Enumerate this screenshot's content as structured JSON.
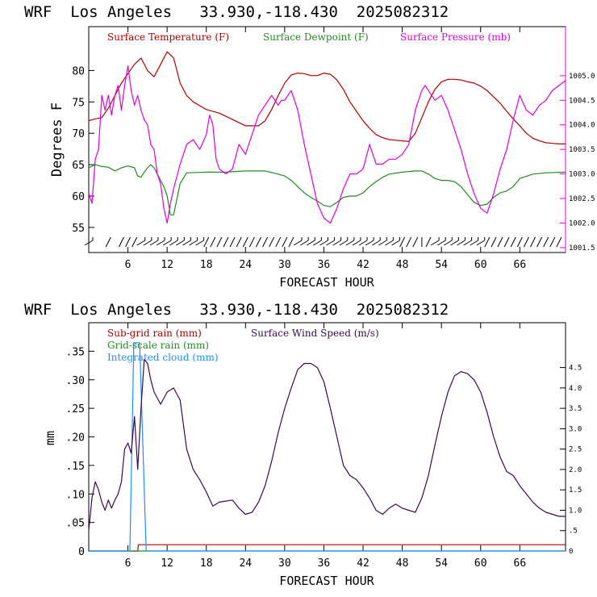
{
  "chart_data": [
    {
      "type": "line",
      "title": "WRF  Los Angeles   33.930,-118.430  2025082312",
      "xlabel": "FORECAST HOUR",
      "ylabel": "Degrees F",
      "xlim": [
        0,
        73
      ],
      "ylim": [
        51,
        87
      ],
      "y2lim": [
        1001.4,
        1006.0
      ],
      "x_ticks": [
        6,
        12,
        18,
        24,
        30,
        36,
        42,
        48,
        54,
        60,
        66
      ],
      "x_tick_labels": [
        "6",
        "12",
        "18",
        "24",
        "30",
        "36",
        "42",
        "48",
        "54",
        "60",
        "66"
      ],
      "y_ticks": [
        55,
        60,
        65,
        70,
        75,
        80
      ],
      "y_tick_labels": [
        "55",
        "60",
        "65",
        "70",
        "75",
        "80"
      ],
      "y2_ticks": [
        1001.5,
        1002.0,
        1002.5,
        1003.0,
        1003.5,
        1004.0,
        1004.5,
        1005.0
      ],
      "y2_tick_labels": [
        "1001.5",
        "1002.0",
        "1002.5",
        "1003.0",
        "1003.5",
        "1004.0",
        "1004.5",
        "1005.0"
      ],
      "grid": false,
      "legend_position": "top",
      "series": [
        {
          "name": "Surface Temperature (F)",
          "color": "#b00000",
          "axis": "left",
          "x": [
            0,
            1,
            2,
            3,
            4,
            5,
            6,
            7,
            8,
            9,
            10,
            11,
            12,
            13,
            14,
            15,
            16,
            18,
            20,
            22,
            24,
            26,
            27,
            28,
            29,
            30,
            31,
            32,
            33,
            34,
            35,
            36,
            37,
            38,
            39,
            40,
            41,
            42,
            43,
            44,
            45,
            46,
            47,
            48,
            49,
            50,
            51,
            52,
            53,
            54,
            55,
            56,
            57,
            58,
            59,
            60,
            61,
            62,
            63,
            64,
            65,
            66,
            67,
            68,
            69,
            70,
            71,
            72,
            73
          ],
          "values": [
            72.0,
            72.3,
            72.5,
            74.0,
            76.0,
            78.0,
            79.5,
            81.0,
            82.0,
            80.0,
            79.0,
            81.0,
            83.0,
            82.0,
            78.0,
            76.0,
            75.0,
            73.8,
            73.2,
            72.2,
            71.2,
            71.2,
            72.0,
            73.8,
            76.0,
            78.0,
            79.3,
            79.6,
            79.5,
            79.2,
            79.2,
            79.6,
            79.4,
            78.5,
            77.0,
            75.0,
            73.5,
            72.0,
            70.8,
            69.8,
            69.3,
            69.0,
            68.9,
            68.8,
            68.7,
            70.0,
            72.5,
            75.0,
            77.0,
            78.2,
            78.6,
            78.6,
            78.5,
            78.2,
            78.0,
            77.5,
            76.8,
            75.8,
            74.8,
            73.5,
            72.3,
            71.2,
            70.0,
            69.2,
            68.8,
            68.5,
            68.4,
            68.3,
            68.3
          ]
        },
        {
          "name": "Surface Dewpoint (F)",
          "color": "#228b22",
          "axis": "left",
          "x": [
            0,
            1,
            2,
            3,
            4,
            5,
            6,
            7,
            7.5,
            8,
            8.5,
            9,
            9.5,
            10,
            10.5,
            11,
            11.5,
            12,
            12.5,
            13,
            14,
            15,
            18,
            21,
            24,
            27,
            29,
            30,
            31,
            32,
            33,
            34,
            35,
            36,
            37,
            38,
            39,
            40,
            41,
            42,
            43,
            44,
            45,
            46,
            48,
            50,
            51,
            52,
            53,
            54,
            55,
            56,
            57,
            58,
            59,
            60,
            61,
            62,
            63,
            64,
            65,
            66,
            68,
            70,
            73
          ],
          "values": [
            64.5,
            65.0,
            64.7,
            64.6,
            64.0,
            64.5,
            64.8,
            64.5,
            63.2,
            63.0,
            63.8,
            64.5,
            65.0,
            64.5,
            63.5,
            62.5,
            61.5,
            60.0,
            57.0,
            57.0,
            62.0,
            63.7,
            63.8,
            63.8,
            64.0,
            64.0,
            63.5,
            63.2,
            62.5,
            61.5,
            60.5,
            59.8,
            59.2,
            58.5,
            58.3,
            59.0,
            59.8,
            60.0,
            60.0,
            60.5,
            61.5,
            62.3,
            63.0,
            63.5,
            63.8,
            64.0,
            64.0,
            63.5,
            62.8,
            62.5,
            62.5,
            62.3,
            61.5,
            60.2,
            59.0,
            58.5,
            58.7,
            59.8,
            60.5,
            60.8,
            61.5,
            62.8,
            63.5,
            63.7,
            63.8
          ]
        },
        {
          "name": "Surface Pressure (mb)",
          "color": "#e000e0",
          "axis": "right",
          "x": [
            0,
            0.5,
            1,
            1.5,
            2,
            2.5,
            3,
            3.5,
            4,
            4.5,
            5,
            5.5,
            6,
            6.5,
            7,
            7.5,
            8,
            8.5,
            9,
            9.5,
            10,
            10.5,
            11,
            11.5,
            12,
            12.5,
            13,
            14,
            15,
            16,
            17,
            18,
            18.5,
            19,
            19.5,
            20,
            21,
            22,
            23,
            24,
            24.5,
            25,
            26,
            27,
            28,
            29,
            29.5,
            30,
            31,
            32,
            33,
            34,
            35,
            36,
            37,
            38,
            39,
            40,
            41,
            42,
            43,
            44,
            45,
            46,
            47,
            48,
            49,
            50,
            51,
            51.5,
            52,
            53,
            54,
            55,
            56,
            57,
            58,
            59,
            60,
            61,
            62,
            63,
            64,
            65,
            66,
            67,
            68,
            69,
            70,
            71,
            72,
            73
          ],
          "values": [
            1002.6,
            1002.4,
            1003.3,
            1003.5,
            1004.6,
            1004.3,
            1004.6,
            1004.2,
            1004.6,
            1004.8,
            1004.3,
            1004.8,
            1005.2,
            1004.7,
            1004.4,
            1004.6,
            1004.3,
            1004.1,
            1004.0,
            1003.6,
            1003.5,
            1003.0,
            1002.8,
            1002.3,
            1002.0,
            1002.4,
            1002.7,
            1003.2,
            1003.6,
            1003.7,
            1003.5,
            1003.8,
            1004.2,
            1004.0,
            1003.3,
            1003.1,
            1003.0,
            1003.1,
            1003.6,
            1003.4,
            1003.6,
            1003.8,
            1004.2,
            1004.4,
            1004.6,
            1004.4,
            1004.5,
            1004.5,
            1004.7,
            1004.3,
            1003.6,
            1003.0,
            1002.4,
            1002.1,
            1002.0,
            1002.3,
            1002.7,
            1003.0,
            1003.0,
            1003.1,
            1003.6,
            1003.2,
            1003.2,
            1003.3,
            1003.3,
            1003.4,
            1003.6,
            1004.3,
            1004.7,
            1004.8,
            1004.7,
            1004.5,
            1004.6,
            1004.3,
            1003.9,
            1003.5,
            1003.0,
            1002.6,
            1002.3,
            1002.2,
            1002.6,
            1003.1,
            1003.5,
            1004.1,
            1004.6,
            1004.3,
            1004.2,
            1004.4,
            1004.5,
            1004.7,
            1004.8,
            1004.9
          ]
        }
      ],
      "wind_barbs": {
        "note": "small wind barbs drawn along the bottom of the plot, one per forecast hour",
        "hours": [
          0,
          1,
          2,
          3,
          4,
          5,
          6,
          7,
          8,
          9,
          10,
          11,
          12,
          13,
          14,
          15,
          16,
          17,
          18,
          19,
          20,
          21,
          22,
          23,
          24,
          25,
          26,
          27,
          28,
          29,
          30,
          31,
          32,
          33,
          34,
          35,
          36,
          37,
          38,
          39,
          40,
          41,
          42,
          43,
          44,
          45,
          46,
          47,
          48,
          49,
          50,
          51,
          52,
          53,
          54,
          55,
          56,
          57,
          58,
          59,
          60,
          61,
          62,
          63,
          64,
          65,
          66,
          67,
          68,
          69,
          70,
          71,
          72
        ],
        "styles": [
          "w",
          "none",
          "none",
          "s",
          "none",
          "s",
          "s",
          "s",
          "w",
          "w",
          "w",
          "w",
          "w",
          "w",
          "w",
          "w",
          "w",
          "w",
          "s",
          "s",
          "s",
          "s",
          "s",
          "s",
          "s",
          "s",
          "s",
          "s",
          "s",
          "s",
          "s",
          "s",
          "w",
          "w",
          "w",
          "w",
          "w",
          "w",
          "w",
          "w",
          "w",
          "w",
          "w",
          "w",
          "w",
          "w",
          "w",
          "w",
          "s",
          "s",
          "s",
          "v",
          "s",
          "w",
          "w",
          "w",
          "w",
          "w",
          "w",
          "w",
          "w",
          "s",
          "s",
          "s",
          "s",
          "s",
          "s",
          "s",
          "s",
          "s",
          "s",
          "s",
          "s"
        ]
      }
    },
    {
      "type": "line",
      "title": "WRF  Los Angeles   33.930,-118.430  2025082312",
      "xlabel": "FORECAST HOUR",
      "ylabel": "mm",
      "xlim": [
        0,
        73
      ],
      "ylim": [
        0,
        0.4
      ],
      "y2lim": [
        0,
        5.6
      ],
      "x_ticks": [
        6,
        12,
        18,
        24,
        30,
        36,
        42,
        48,
        54,
        60,
        66
      ],
      "x_tick_labels": [
        "6",
        "12",
        "18",
        "24",
        "30",
        "36",
        "42",
        "48",
        "54",
        "60",
        "66"
      ],
      "y_ticks": [
        0,
        0.05,
        0.1,
        0.15,
        0.2,
        0.25,
        0.3,
        0.35
      ],
      "y_tick_labels": [
        "0",
        ".05",
        ".10",
        ".15",
        ".20",
        ".25",
        ".30",
        ".35"
      ],
      "y2_ticks": [
        0,
        0.5,
        1.0,
        1.5,
        2.0,
        2.5,
        3.0,
        3.5,
        4.0,
        4.5
      ],
      "y2_tick_labels": [
        "0",
        ".5",
        "1.0",
        "1.5",
        "2.0",
        "2.5",
        "3.0",
        "3.5",
        "4.0",
        "4.5"
      ],
      "grid": false,
      "legend_position": "top-left",
      "series": [
        {
          "name": "Sub-grid rain (mm)",
          "color": "#b00000",
          "axis": "left",
          "x": [
            0,
            7.5,
            7.6,
            73
          ],
          "values": [
            0,
            0,
            0.011,
            0.011
          ]
        },
        {
          "name": "Grid-scale rain (mm)",
          "color": "#228b22",
          "axis": "left",
          "x": [
            0,
            73
          ],
          "values": [
            0,
            0
          ]
        },
        {
          "name": "Integrated cloud (mm)",
          "color": "#1e90ff",
          "axis": "left",
          "x": [
            0,
            6.3,
            6.9,
            7.8,
            8.8,
            73
          ],
          "values": [
            0,
            0,
            0.365,
            0.365,
            0,
            0
          ]
        },
        {
          "name": "Surface Wind Speed (m/s)",
          "color": "#3a0a50",
          "axis": "right",
          "x": [
            0,
            0.5,
            1,
            1.5,
            2,
            2.5,
            3,
            3.5,
            4,
            4.5,
            5,
            5.5,
            6,
            6.5,
            7,
            7.5,
            8,
            8.5,
            9,
            9.5,
            10,
            11,
            12,
            13,
            14,
            15,
            16,
            17,
            18,
            19,
            20,
            22,
            23,
            24,
            25,
            26,
            27,
            28,
            29,
            30,
            31,
            32,
            33,
            34,
            35,
            36,
            37,
            38,
            39,
            40,
            41,
            42,
            43,
            44,
            45,
            46,
            47,
            48,
            49,
            50,
            51,
            52,
            53,
            54,
            55,
            56,
            57,
            58,
            59,
            60,
            61,
            62,
            63,
            64,
            65,
            66,
            67,
            68,
            69,
            70,
            71,
            72,
            73
          ],
          "values": [
            0.5,
            1.3,
            1.7,
            1.5,
            1.2,
            1.0,
            1.25,
            1.05,
            1.25,
            1.4,
            1.7,
            2.5,
            2.65,
            2.4,
            3.3,
            2.0,
            3.5,
            4.7,
            4.6,
            4.2,
            3.9,
            3.6,
            3.9,
            4.0,
            3.7,
            2.5,
            2.0,
            1.75,
            1.45,
            1.1,
            1.2,
            1.25,
            1.05,
            0.9,
            0.95,
            1.2,
            1.6,
            2.2,
            2.9,
            3.5,
            4.0,
            4.45,
            4.6,
            4.6,
            4.5,
            4.15,
            3.5,
            2.8,
            2.1,
            1.85,
            1.75,
            1.55,
            1.3,
            1.0,
            0.9,
            1.05,
            1.15,
            1.05,
            1.0,
            0.95,
            1.3,
            1.85,
            2.6,
            3.3,
            3.9,
            4.3,
            4.4,
            4.35,
            4.2,
            3.9,
            3.4,
            2.8,
            2.3,
            1.95,
            1.85,
            1.6,
            1.4,
            1.2,
            1.05,
            0.95,
            0.9,
            0.85,
            0.85
          ]
        }
      ]
    }
  ]
}
